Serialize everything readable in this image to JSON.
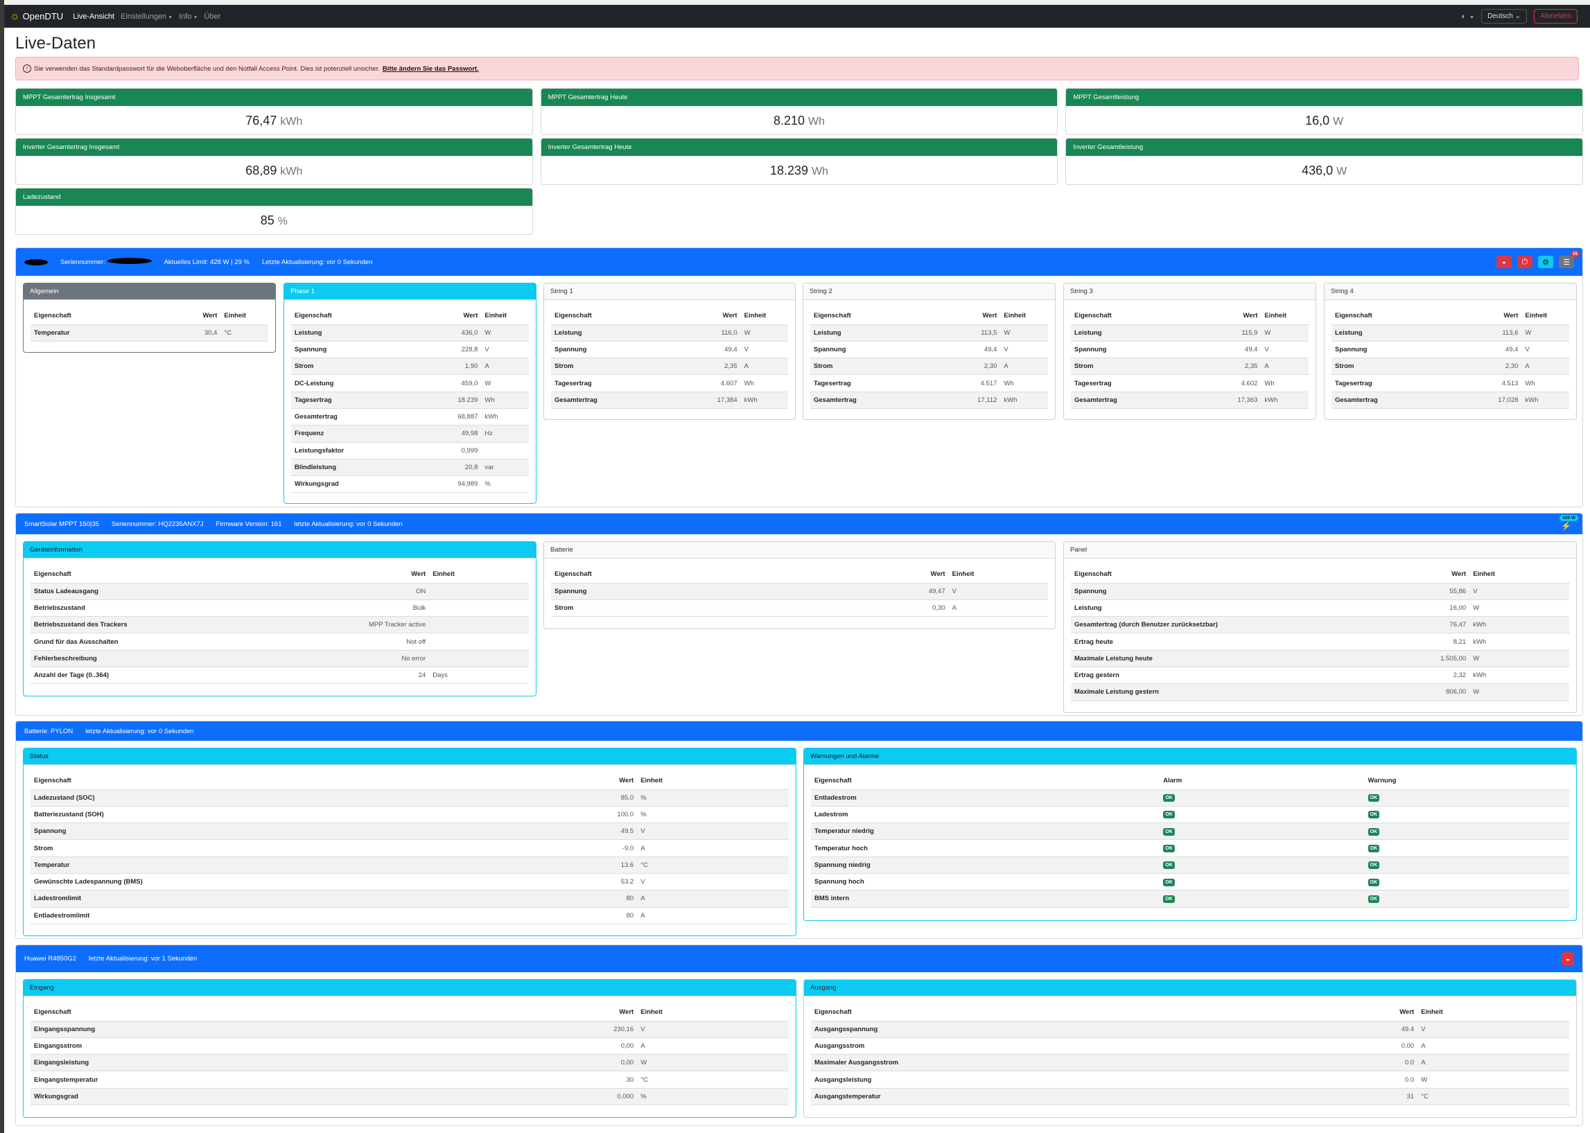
{
  "nav": {
    "brand": "OpenDTU",
    "items": [
      {
        "label": "Live-Ansicht"
      },
      {
        "label": "Einstellungen"
      },
      {
        "label": "Info"
      },
      {
        "label": "Über"
      }
    ],
    "language": "Deutsch",
    "logout": "Abmelden"
  },
  "page_title": "Live-Daten",
  "alert": {
    "text": "Sie verwenden das Standardpasswort für die Weboberfläche und den Notfall Access Point. Dies ist potenziell unsicher.",
    "link": "Bitte ändern Sie das Passwort."
  },
  "summary": [
    {
      "title": "MPPT Gesamtertrag Insgesamt",
      "value": "76,47",
      "unit": "kWh"
    },
    {
      "title": "MPPT Gesamtertrag Heute",
      "value": "8.210",
      "unit": "Wh"
    },
    {
      "title": "MPPT Gesamtleistung",
      "value": "16,0",
      "unit": "W"
    },
    {
      "title": "Inverter Gesamtertrag Insgesamt",
      "value": "68,89",
      "unit": "kWh"
    },
    {
      "title": "Inverter Gesamtertrag Heute",
      "value": "18.239",
      "unit": "Wh"
    },
    {
      "title": "Inverter Gesamtleistung",
      "value": "436,0",
      "unit": "W"
    },
    {
      "title": "Ladezustand",
      "value": "85",
      "unit": "%"
    }
  ],
  "colors": {
    "primary": "#0d6efd",
    "success": "#198754",
    "info": "#0dcaf0",
    "danger": "#dc3545",
    "secondary": "#6c757d"
  },
  "inverter": {
    "serial_label": "Seriennummer:",
    "limit": "Aktuelles Limit: 428 W | 29 %",
    "update": "Letzte Aktualisierung: vor 0 Sekunden",
    "events_badge": "15",
    "cards": [
      {
        "title": "Allgemein",
        "headers": [
          "Eigenschaft",
          "Wert",
          "Einheit"
        ],
        "rows": [
          [
            "Temperatur",
            "30,4",
            "°C"
          ]
        ]
      },
      {
        "title": "Phase 1",
        "headers": [
          "Eigenschaft",
          "Wert",
          "Einheit"
        ],
        "rows": [
          [
            "Leistung",
            "436,0",
            "W"
          ],
          [
            "Spannung",
            "228,8",
            "V"
          ],
          [
            "Strom",
            "1,90",
            "A"
          ],
          [
            "DC-Leistung",
            "459,0",
            "W"
          ],
          [
            "Tagesertrag",
            "18.239",
            "Wh"
          ],
          [
            "Gesamtertrag",
            "68,887",
            "kWh"
          ],
          [
            "Frequenz",
            "49,98",
            "Hz"
          ],
          [
            "Leistungsfaktor",
            "0,999",
            ""
          ],
          [
            "Blindleistung",
            "20,8",
            "var"
          ],
          [
            "Wirkungsgrad",
            "94,989",
            "%"
          ]
        ]
      },
      {
        "title": "String 1",
        "headers": [
          "Eigenschaft",
          "Wert",
          "Einheit"
        ],
        "rows": [
          [
            "Leistung",
            "116,0",
            "W"
          ],
          [
            "Spannung",
            "49,4",
            "V"
          ],
          [
            "Strom",
            "2,35",
            "A"
          ],
          [
            "Tagesertrag",
            "4.607",
            "Wh"
          ],
          [
            "Gesamtertrag",
            "17,384",
            "kWh"
          ]
        ]
      },
      {
        "title": "String 2",
        "headers": [
          "Eigenschaft",
          "Wert",
          "Einheit"
        ],
        "rows": [
          [
            "Leistung",
            "113,5",
            "W"
          ],
          [
            "Spannung",
            "49,4",
            "V"
          ],
          [
            "Strom",
            "2,30",
            "A"
          ],
          [
            "Tagesertrag",
            "4.517",
            "Wh"
          ],
          [
            "Gesamtertrag",
            "17,112",
            "kWh"
          ]
        ]
      },
      {
        "title": "String 3",
        "headers": [
          "Eigenschaft",
          "Wert",
          "Einheit"
        ],
        "rows": [
          [
            "Leistung",
            "115,9",
            "W"
          ],
          [
            "Spannung",
            "49,4",
            "V"
          ],
          [
            "Strom",
            "2,35",
            "A"
          ],
          [
            "Tagesertrag",
            "4.602",
            "Wh"
          ],
          [
            "Gesamtertrag",
            "17,363",
            "kWh"
          ]
        ]
      },
      {
        "title": "String 4",
        "headers": [
          "Eigenschaft",
          "Wert",
          "Einheit"
        ],
        "rows": [
          [
            "Leistung",
            "113,6",
            "W"
          ],
          [
            "Spannung",
            "49,4",
            "V"
          ],
          [
            "Strom",
            "2,30",
            "A"
          ],
          [
            "Tagesertrag",
            "4.513",
            "Wh"
          ],
          [
            "Gesamtertrag",
            "17,028",
            "kWh"
          ]
        ]
      }
    ]
  },
  "mppt": {
    "name": "SmartSolar MPPT 150|35",
    "serial": "Seriennummer: HQ2235ANX7J",
    "firmware": "Firmware Version: 161",
    "update": "letzte Aktualisierung: vor 0 Sekunden",
    "power_badge": "429 W",
    "cards": [
      {
        "title": "Geräteinformation",
        "headers": [
          "Eigenschaft",
          "Wert",
          "Einheit"
        ],
        "rows": [
          [
            "Status Ladeausgang",
            "ON",
            ""
          ],
          [
            "Betriebszustand",
            "Bulk",
            ""
          ],
          [
            "Betriebszustand des Trackers",
            "MPP Tracker active",
            ""
          ],
          [
            "Grund für das Ausschalten",
            "Not off",
            ""
          ],
          [
            "Fehlerbeschreibung",
            "No error",
            ""
          ],
          [
            "Anzahl der Tage (0..364)",
            "24",
            "Days"
          ]
        ]
      },
      {
        "title": "Batterie",
        "headers": [
          "Eigenschaft",
          "Wert",
          "Einheit"
        ],
        "rows": [
          [
            "Spannung",
            "49,47",
            "V"
          ],
          [
            "Strom",
            "0,30",
            "A"
          ]
        ]
      },
      {
        "title": "Panel",
        "headers": [
          "Eigenschaft",
          "Wert",
          "Einheit"
        ],
        "rows": [
          [
            "Spannung",
            "55,86",
            "V"
          ],
          [
            "Leistung",
            "16,00",
            "W"
          ],
          [
            "Gesamtertrag (durch Benutzer zurücksetzbar)",
            "76,47",
            "kWh"
          ],
          [
            "Ertrag heute",
            "8,21",
            "kWh"
          ],
          [
            "Maximale Leistung heute",
            "1.505,00",
            "W"
          ],
          [
            "Ertrag gestern",
            "2,32",
            "kWh"
          ],
          [
            "Maximale Leistung gestern",
            "806,00",
            "W"
          ]
        ]
      }
    ]
  },
  "battery": {
    "name": "Batterie: PYLON",
    "update": "letzte Aktualisierung: vor 0 Sekunden",
    "cards": [
      {
        "title": "Status",
        "headers": [
          "Eigenschaft",
          "Wert",
          "Einheit"
        ],
        "rows": [
          [
            "Ladezustand (SOC)",
            "85.0",
            "%"
          ],
          [
            "Batteriezustand (SOH)",
            "100.0",
            "%"
          ],
          [
            "Spannung",
            "49.5",
            "V"
          ],
          [
            "Strom",
            "-9.0",
            "A"
          ],
          [
            "Temperatur",
            "13.6",
            "°C"
          ],
          [
            "Gewünschte Ladespannung (BMS)",
            "53.2",
            "V"
          ],
          [
            "Ladestromlimit",
            "80",
            "A"
          ],
          [
            "Entladestromlimit",
            "80",
            "A"
          ]
        ]
      },
      {
        "title": "Warnungen und Alarme",
        "headers": [
          "Eigenschaft",
          "Alarm",
          "Warnung"
        ],
        "rows": [
          [
            "Entladestrom",
            "OK",
            "OK"
          ],
          [
            "Ladestrom",
            "OK",
            "OK"
          ],
          [
            "Temperatur niedrig",
            "OK",
            "OK"
          ],
          [
            "Temperatur hoch",
            "OK",
            "OK"
          ],
          [
            "Spannung niedrig",
            "OK",
            "OK"
          ],
          [
            "Spannung hoch",
            "OK",
            "OK"
          ],
          [
            "BMS intern",
            "OK",
            "OK"
          ]
        ]
      }
    ]
  },
  "huawei": {
    "name": "Huawei R4850G2",
    "update": "letzte Aktualisierung: vor 1 Sekunden",
    "cards": [
      {
        "title": "Eingang",
        "headers": [
          "Eigenschaft",
          "Wert",
          "Einheit"
        ],
        "rows": [
          [
            "Eingangsspannung",
            "230,16",
            "V"
          ],
          [
            "Eingangsstrom",
            "0,00",
            "A"
          ],
          [
            "Eingangsleistung",
            "0,00",
            "W"
          ],
          [
            "Eingangstemperatur",
            "30",
            "°C"
          ],
          [
            "Wirkungsgrad",
            "0,000",
            "%"
          ]
        ]
      },
      {
        "title": "Ausgang",
        "headers": [
          "Eigenschaft",
          "Wert",
          "Einheit"
        ],
        "rows": [
          [
            "Ausgangsspannung",
            "49.4",
            "V"
          ],
          [
            "Ausgangsstrom",
            "0.00",
            "A"
          ],
          [
            "Maximaler Ausgangsstrom",
            "0.0",
            "A"
          ],
          [
            "Ausgangsleistung",
            "0.0",
            "W"
          ],
          [
            "Ausgangstemperatur",
            "31",
            "°C"
          ]
        ]
      }
    ]
  }
}
